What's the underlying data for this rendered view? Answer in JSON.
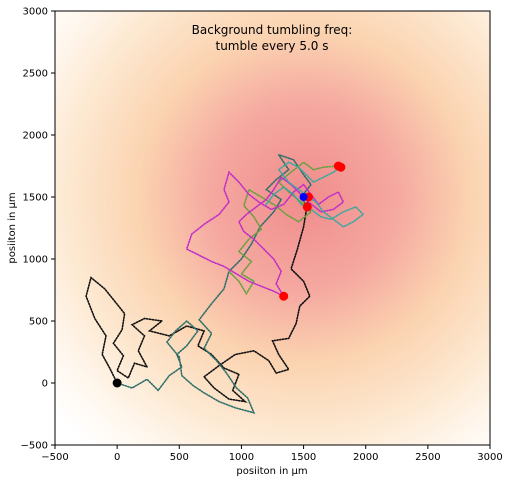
{
  "chart_data": {
    "type": "scatter",
    "xlabel": "posiiton in µm",
    "ylabel": "posiiton in µm",
    "xlim": [
      -500,
      3000
    ],
    "ylim": [
      -500,
      3000
    ],
    "xticks": [
      -500,
      0,
      500,
      1000,
      1500,
      2000,
      2500,
      3000
    ],
    "yticks": [
      -500,
      0,
      500,
      1000,
      1500,
      2000,
      2500,
      3000
    ],
    "grid": false,
    "annotation": [
      "Background tumbling freq:",
      "tumble every 5.0 s"
    ],
    "background_field": {
      "type": "radial-gradient",
      "center": [
        1500,
        1500
      ],
      "colormap": [
        "#f08c8c",
        "#f8c8a0",
        "#fde7c8",
        "#fff8f0",
        "#ffffff"
      ]
    },
    "start": {
      "x": 0,
      "y": 0,
      "color": "#000000"
    },
    "goal": {
      "x": 1500,
      "y": 1500,
      "color": "#0000ff"
    },
    "series": [
      {
        "color": "#111111",
        "end_color": "#ff0000",
        "points": [
          [
            0,
            0
          ],
          [
            -60,
            120
          ],
          [
            -120,
            230
          ],
          [
            -90,
            380
          ],
          [
            -180,
            520
          ],
          [
            -250,
            700
          ],
          [
            -210,
            850
          ],
          [
            -100,
            760
          ],
          [
            -20,
            660
          ],
          [
            60,
            560
          ],
          [
            40,
            430
          ],
          [
            -30,
            320
          ],
          [
            50,
            220
          ],
          [
            0,
            100
          ],
          [
            90,
            40
          ],
          [
            140,
            160
          ],
          [
            240,
            130
          ],
          [
            170,
            260
          ],
          [
            220,
            380
          ],
          [
            120,
            470
          ],
          [
            220,
            520
          ],
          [
            360,
            500
          ],
          [
            260,
            420
          ],
          [
            420,
            380
          ],
          [
            560,
            460
          ],
          [
            700,
            420
          ],
          [
            650,
            300
          ],
          [
            760,
            230
          ],
          [
            860,
            120
          ],
          [
            980,
            70
          ],
          [
            930,
            -60
          ],
          [
            1030,
            -150
          ],
          [
            900,
            -130
          ],
          [
            780,
            -40
          ],
          [
            700,
            50
          ],
          [
            820,
            140
          ],
          [
            950,
            230
          ],
          [
            1100,
            260
          ],
          [
            1220,
            180
          ],
          [
            1280,
            80
          ],
          [
            1380,
            110
          ],
          [
            1300,
            230
          ],
          [
            1250,
            340
          ],
          [
            1380,
            360
          ],
          [
            1440,
            480
          ],
          [
            1470,
            620
          ],
          [
            1550,
            700
          ],
          [
            1500,
            820
          ],
          [
            1400,
            920
          ],
          [
            1450,
            1080
          ],
          [
            1500,
            1260
          ],
          [
            1540,
            1500
          ]
        ]
      },
      {
        "color": "#2f6f6a",
        "end_color": "#ff0000",
        "points": [
          [
            0,
            0
          ],
          [
            120,
            -40
          ],
          [
            240,
            30
          ],
          [
            330,
            -60
          ],
          [
            420,
            60
          ],
          [
            520,
            130
          ],
          [
            480,
            230
          ],
          [
            560,
            300
          ],
          [
            650,
            420
          ],
          [
            560,
            500
          ],
          [
            470,
            420
          ],
          [
            400,
            330
          ],
          [
            500,
            210
          ],
          [
            520,
            60
          ],
          [
            610,
            -20
          ],
          [
            700,
            -80
          ],
          [
            820,
            -150
          ],
          [
            950,
            -200
          ],
          [
            1100,
            -240
          ],
          [
            1050,
            -120
          ],
          [
            960,
            -40
          ],
          [
            880,
            80
          ],
          [
            800,
            180
          ],
          [
            700,
            280
          ],
          [
            760,
            400
          ],
          [
            660,
            510
          ],
          [
            760,
            640
          ],
          [
            860,
            760
          ],
          [
            900,
            900
          ],
          [
            1000,
            1000
          ],
          [
            1080,
            1120
          ],
          [
            1150,
            1260
          ],
          [
            1260,
            1380
          ],
          [
            1320,
            1480
          ],
          [
            1200,
            1560
          ],
          [
            1280,
            1640
          ],
          [
            1380,
            1720
          ],
          [
            1300,
            1840
          ],
          [
            1420,
            1800
          ],
          [
            1500,
            1680
          ],
          [
            1560,
            1600
          ],
          [
            1480,
            1500
          ],
          [
            1530,
            1420
          ]
        ]
      },
      {
        "color": "#6aa040",
        "end_color": "#ff0000",
        "points": [
          [
            900,
            900
          ],
          [
            980,
            820
          ],
          [
            1040,
            720
          ],
          [
            1100,
            820
          ],
          [
            1000,
            880
          ],
          [
            1080,
            980
          ],
          [
            980,
            1060
          ],
          [
            1060,
            1160
          ],
          [
            1160,
            1240
          ],
          [
            1100,
            1340
          ],
          [
            1020,
            1430
          ],
          [
            1060,
            1560
          ],
          [
            1160,
            1500
          ],
          [
            1260,
            1440
          ],
          [
            1360,
            1360
          ],
          [
            1460,
            1300
          ],
          [
            1560,
            1380
          ],
          [
            1480,
            1460
          ],
          [
            1380,
            1540
          ],
          [
            1300,
            1620
          ],
          [
            1400,
            1700
          ],
          [
            1500,
            1780
          ],
          [
            1580,
            1720
          ],
          [
            1660,
            1740
          ],
          [
            1780,
            1750
          ]
        ]
      },
      {
        "color": "#c02ec8",
        "end_color": "#ff0000",
        "points": [
          [
            1340,
            700
          ],
          [
            1260,
            740
          ],
          [
            1160,
            780
          ],
          [
            1060,
            820
          ],
          [
            960,
            880
          ],
          [
            860,
            940
          ],
          [
            760,
            980
          ],
          [
            640,
            1040
          ],
          [
            560,
            1080
          ],
          [
            600,
            1200
          ],
          [
            700,
            1280
          ],
          [
            820,
            1360
          ],
          [
            900,
            1460
          ],
          [
            860,
            1560
          ],
          [
            900,
            1700
          ],
          [
            980,
            1620
          ],
          [
            1060,
            1520
          ],
          [
            1140,
            1460
          ],
          [
            1240,
            1400
          ],
          [
            1340,
            1440
          ],
          [
            1420,
            1540
          ],
          [
            1500,
            1600
          ],
          [
            1560,
            1520
          ],
          [
            1620,
            1440
          ],
          [
            1700,
            1500
          ],
          [
            1780,
            1540
          ],
          [
            1820,
            1460
          ],
          [
            1740,
            1400
          ],
          [
            1640,
            1380
          ],
          [
            1540,
            1460
          ],
          [
            1480,
            1520
          ],
          [
            1400,
            1600
          ],
          [
            1320,
            1660
          ],
          [
            1260,
            1560
          ],
          [
            1200,
            1480
          ],
          [
            1120,
            1420
          ],
          [
            1040,
            1360
          ],
          [
            980,
            1300
          ],
          [
            1020,
            1220
          ],
          [
            1100,
            1160
          ],
          [
            1180,
            1080
          ],
          [
            1260,
            1000
          ],
          [
            1320,
            900
          ],
          [
            1280,
            800
          ],
          [
            1340,
            700
          ]
        ]
      },
      {
        "color": "#3aa8a0",
        "end_color": "#ff0000",
        "points": [
          [
            1200,
            1440
          ],
          [
            1260,
            1520
          ],
          [
            1340,
            1580
          ],
          [
            1420,
            1520
          ],
          [
            1480,
            1440
          ],
          [
            1560,
            1400
          ],
          [
            1640,
            1340
          ],
          [
            1720,
            1320
          ],
          [
            1820,
            1380
          ],
          [
            1920,
            1420
          ],
          [
            1980,
            1360
          ],
          [
            1900,
            1300
          ],
          [
            1820,
            1260
          ],
          [
            1740,
            1320
          ],
          [
            1660,
            1380
          ],
          [
            1600,
            1460
          ],
          [
            1540,
            1500
          ],
          [
            1460,
            1560
          ],
          [
            1380,
            1620
          ],
          [
            1300,
            1720
          ],
          [
            1380,
            1780
          ],
          [
            1460,
            1740
          ],
          [
            1520,
            1680
          ],
          [
            1580,
            1620
          ],
          [
            1660,
            1660
          ],
          [
            1740,
            1700
          ],
          [
            1800,
            1740
          ]
        ]
      }
    ]
  }
}
